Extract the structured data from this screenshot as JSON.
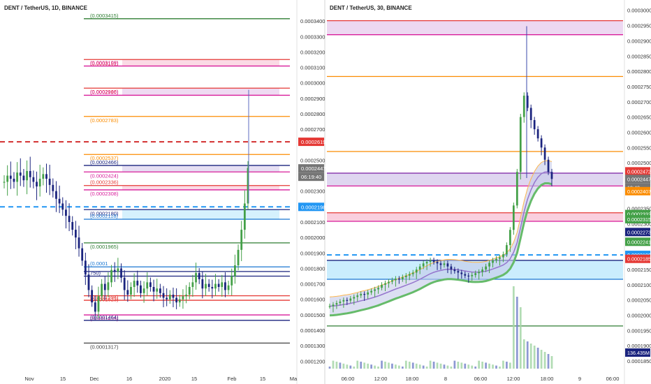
{
  "left_panel": {
    "title": "DENT / TetherUS, 1D, BINANCE",
    "price_axis": [
      "0.0003400",
      "0.0003300",
      "0.0003200",
      "0.0003100",
      "0.0003000",
      "0.0002900",
      "0.0002800",
      "0.0002700",
      "0.0002500",
      "0.0002300",
      "0.0002100",
      "0.0002000",
      "0.0001900",
      "0.0001800",
      "0.0001700",
      "0.0001600",
      "0.0001500",
      "0.0001400",
      "0.0001300",
      "0.0001200"
    ],
    "time_axis": [
      "Nov",
      "15",
      "Dec",
      "16",
      "2020",
      "15",
      "Feb",
      "15",
      "Ma"
    ],
    "price_badges": [
      {
        "text": "0.0002619",
        "color": "#e53935"
      },
      {
        "text": "0.0002447",
        "color": "#757575"
      },
      {
        "text": "06:19:40",
        "color": "#757575"
      },
      {
        "text": "0.0002198",
        "color": "#2196f3"
      }
    ],
    "levels": [
      {
        "label": "(0.0003415)",
        "price": 0.0003415,
        "color": "#2e7d32",
        "style": "solid"
      },
      {
        "label": "(0.0003151)",
        "price": 0.0003151,
        "color": "#e53935",
        "style": "solid"
      },
      {
        "label": "(0.0003109)",
        "price": 0.0003109,
        "color": "#d81b9a",
        "style": "solid"
      },
      {
        "label": "(0.0002966)",
        "price": 0.0002966,
        "color": "#e53935",
        "style": "solid"
      },
      {
        "label": "(0.0002920)",
        "price": 0.000292,
        "color": "#d81b9a",
        "style": "solid"
      },
      {
        "label": "(0.0002783)",
        "price": 0.0002783,
        "color": "#fb8c00",
        "style": "solid"
      },
      {
        "label": "",
        "price": 0.0002619,
        "color": "#d32f2f",
        "style": "dashed"
      },
      {
        "label": "(0.0002537)",
        "price": 0.0002537,
        "color": "#fb8c00",
        "style": "solid"
      },
      {
        "label": "(0.0002466)",
        "price": 0.0002466,
        "color": "#1a237e",
        "style": "solid"
      },
      {
        "label": "(0.0002424)",
        "price": 0.0002424,
        "color": "#d81b9a",
        "style": "solid"
      },
      {
        "label": "(0.0002336)",
        "price": 0.0002336,
        "color": "#e53935",
        "style": "solid"
      },
      {
        "label": "(0.0002308)",
        "price": 0.0002308,
        "color": "#d81b9a",
        "style": "solid"
      },
      {
        "label": "",
        "price": 0.0002198,
        "color": "#2196f3",
        "style": "dashed"
      },
      {
        "label": "(0.0002180)",
        "price": 0.000218,
        "color": "#1a237e",
        "style": "solid"
      },
      {
        "label": "(0.0002118)",
        "price": 0.0002118,
        "color": "#1976d2",
        "style": "solid"
      },
      {
        "label": "(0.0001965)",
        "price": 0.0001965,
        "color": "#2e7d32",
        "style": "solid"
      },
      {
        "label": "(0.0001",
        "price": 0.000181,
        "color": "#1976d2",
        "style": "solid"
      },
      {
        "label": "",
        "price": 0.000178,
        "color": "#1a237e",
        "style": "solid"
      },
      {
        "label": "750)",
        "price": 0.000175,
        "color": "#1a237e",
        "style": "solid"
      },
      {
        "label": "(0.0001623)",
        "price": 0.0001623,
        "color": "#e53935",
        "style": "solid"
      },
      {
        "label": "(0.0001594)",
        "price": 0.0001594,
        "color": "#e53935",
        "style": "solid"
      },
      {
        "label": "(0.0001499)",
        "price": 0.0001499,
        "color": "#d81b9a",
        "style": "solid"
      },
      {
        "label": "(0.0001464)",
        "price": 0.0001464,
        "color": "#1a237e",
        "style": "solid"
      },
      {
        "label": "(0.0001317)",
        "price": 0.0001317,
        "color": "#424242",
        "style": "solid"
      }
    ],
    "zones": [
      {
        "top": 0.0003151,
        "bottom": 0.0003109,
        "color": "#f8bbd0"
      },
      {
        "top": 0.0002966,
        "bottom": 0.000292,
        "color": "#e1bee7"
      },
      {
        "top": 0.0002466,
        "bottom": 0.0002424,
        "color": "#d1c4e9"
      },
      {
        "top": 0.0002336,
        "bottom": 0.0002308,
        "color": "#f8bbd0"
      },
      {
        "top": 0.000218,
        "bottom": 0.0002118,
        "color": "#b3e5fc"
      }
    ]
  },
  "right_panel": {
    "title": "DENT / TetherUS, 30, BINANCE",
    "price_axis": [
      "0.0003000",
      "0.0002950",
      "0.0002900",
      "0.0002850",
      "0.0002800",
      "0.0002750",
      "0.0002700",
      "0.0002650",
      "0.0002600",
      "0.0002550",
      "0.0002500",
      "0.0002350",
      "0.0002300",
      "0.0002150",
      "0.0002100",
      "0.0002050",
      "0.0002000",
      "0.0001950",
      "0.0001900",
      "0.0001850"
    ],
    "time_axis": [
      "06:00",
      "12:00",
      "18:00",
      "8",
      "06:00",
      "12:00",
      "18:00",
      "9",
      "06:00"
    ],
    "price_badges": [
      {
        "text": "0.0002472",
        "color": "#e53935"
      },
      {
        "text": "0.0002447",
        "color": "#757575"
      },
      {
        "text": "19:40",
        "color": "#757575"
      },
      {
        "text": "0.0002407",
        "color": "#fb8c00"
      },
      {
        "text": "0.0002332",
        "color": "#43a047"
      },
      {
        "text": "0.0002315",
        "color": "#43a047"
      },
      {
        "text": "0.0002273",
        "color": "#1a237e"
      },
      {
        "text": "0.0002241",
        "color": "#43a047"
      },
      {
        "text": "0.0002198",
        "color": "#2196f3"
      },
      {
        "text": "0.0002185",
        "color": "#e53935"
      },
      {
        "text": "136.435M",
        "color": "#1a237e"
      }
    ],
    "levels": [
      {
        "price": 0.0002966,
        "color": "#e53935"
      },
      {
        "price": 0.000292,
        "color": "#d81b9a"
      },
      {
        "price": 0.0002783,
        "color": "#fb8c00"
      },
      {
        "price": 0.0002537,
        "color": "#fb8c00"
      },
      {
        "price": 0.0002466,
        "color": "#7b1fa2"
      },
      {
        "price": 0.0002424,
        "color": "#d81b9a"
      },
      {
        "price": 0.0002336,
        "color": "#e53935"
      },
      {
        "price": 0.0002308,
        "color": "#d81b9a"
      },
      {
        "price": 0.000218,
        "color": "#1a237e"
      },
      {
        "price": 0.0002118,
        "color": "#1976d2"
      },
      {
        "price": 0.0001965,
        "color": "#2e7d32"
      }
    ]
  },
  "chart_data": [
    {
      "type": "candlestick",
      "title": "DENT / TetherUS, 1D, BINANCE",
      "ylim": [
        0.000112,
        0.00035
      ],
      "last": 0.0002447,
      "closes": [
        0.000236,
        0.00024,
        0.000238,
        0.000236,
        0.000242,
        0.00024,
        0.000237,
        0.000243,
        0.000239,
        0.000236,
        0.000233,
        0.000238,
        0.000241,
        0.000238,
        0.000234,
        0.00023,
        0.000225,
        0.000222,
        0.000218,
        0.000214,
        0.00021,
        0.000205,
        0.0002,
        0.000193,
        0.000185,
        0.000176,
        0.000166,
        0.000158,
        0.000152,
        0.000162,
        0.00017,
        0.000166,
        0.000171,
        0.000179,
        0.000178,
        0.00018,
        0.000174,
        0.000166,
        0.000163,
        0.000168,
        0.000172,
        0.000169,
        0.000164,
        0.000167,
        0.000171,
        0.000168,
        0.000165,
        0.000167,
        0.000164,
        0.000161,
        0.00016,
        0.000163,
        0.000161,
        0.000158,
        0.00016,
        0.000162,
        0.000163,
        0.000168,
        0.000171,
        0.000177,
        0.000173,
        0.000167,
        0.00017,
        0.000168,
        0.000167,
        0.00017,
        0.000168,
        0.000171,
        0.000166,
        0.000169,
        0.000175,
        0.000182,
        0.000192,
        0.000205,
        0.000222,
        0.000245
      ]
    },
    {
      "type": "candlestick",
      "title": "DENT / TetherUS, 30, BINANCE",
      "ylim": [
        0.0001825,
        0.000302
      ],
      "last": 0.0002447,
      "closes": [
        0.000203,
        0.0002035,
        0.000204,
        0.0002045,
        0.000205,
        0.0002048,
        0.0002055,
        0.000206,
        0.0002065,
        0.000207,
        0.0002068,
        0.0002075,
        0.000208,
        0.0002085,
        0.000209,
        0.00021,
        0.0002105,
        0.000211,
        0.0002115,
        0.000212,
        0.0002118,
        0.0002125,
        0.000213,
        0.0002135,
        0.000214,
        0.000215,
        0.000216,
        0.000217,
        0.0002175,
        0.000218,
        0.0002175,
        0.000217,
        0.0002165,
        0.000217,
        0.000216,
        0.000215,
        0.0002145,
        0.000214,
        0.0002135,
        0.000213,
        0.0002128,
        0.0002132,
        0.0002138,
        0.0002142,
        0.000215,
        0.000216,
        0.0002172,
        0.000218,
        0.0002185,
        0.000219,
        0.00022,
        0.000223,
        0.000228,
        0.000236,
        0.000247,
        0.000265,
        0.000272,
        0.000268,
        0.000264,
        0.000261,
        0.000258,
        0.000255,
        0.000251,
        0.000247,
        0.0002447
      ],
      "volume_last": "136.435M"
    }
  ]
}
